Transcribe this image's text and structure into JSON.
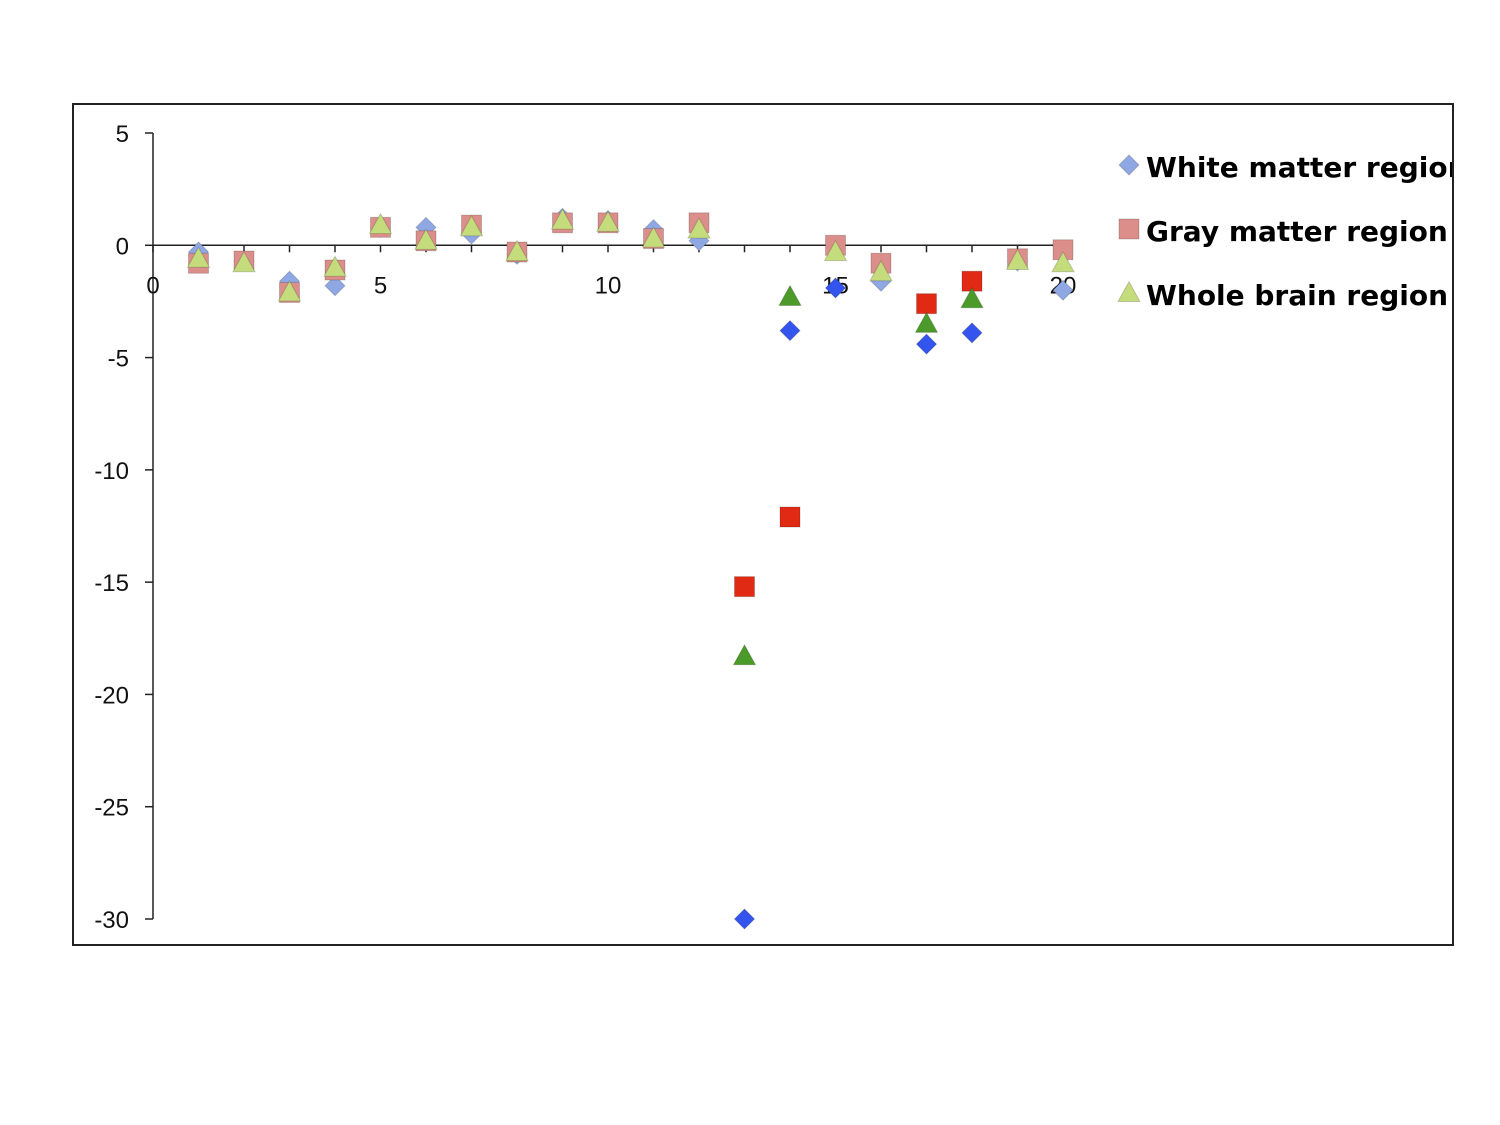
{
  "chart_data": {
    "type": "scatter",
    "title": "",
    "xlabel": "",
    "ylabel": "",
    "xlim": [
      0,
      20
    ],
    "ylim": [
      -30,
      5
    ],
    "x_ticks": [
      0,
      5,
      10,
      15,
      20
    ],
    "y_ticks": [
      5,
      0,
      -5,
      -10,
      -15,
      -20,
      -25,
      -30
    ],
    "grid": false,
    "legend_position": "top-right",
    "series": [
      {
        "name": "White matter region",
        "marker": "diamond",
        "color": "#3355ee",
        "faded_color": "#8fa8e4",
        "points": [
          [
            1,
            -0.3
          ],
          [
            2,
            -0.7
          ],
          [
            3,
            -1.6
          ],
          [
            4,
            -1.8
          ],
          [
            5,
            0.8
          ],
          [
            6,
            0.8
          ],
          [
            7,
            0.5
          ],
          [
            8,
            -0.4
          ],
          [
            9,
            1.2
          ],
          [
            10,
            1.1
          ],
          [
            11,
            0.7
          ],
          [
            12,
            0.2
          ],
          [
            13,
            -30
          ],
          [
            14,
            -3.8
          ],
          [
            15,
            -1.9
          ],
          [
            16,
            -1.6
          ],
          [
            17,
            -4.4
          ],
          [
            18,
            -3.9
          ],
          [
            19,
            -0.7
          ],
          [
            20,
            -2.0
          ]
        ]
      },
      {
        "name": "Gray matter region",
        "marker": "square",
        "color": "#e02a14",
        "faded_color": "#dc8f8a",
        "points": [
          [
            1,
            -0.8
          ],
          [
            2,
            -0.7
          ],
          [
            3,
            -2.1
          ],
          [
            4,
            -1.1
          ],
          [
            5,
            0.8
          ],
          [
            6,
            0.2
          ],
          [
            7,
            0.9
          ],
          [
            8,
            -0.3
          ],
          [
            9,
            1.0
          ],
          [
            10,
            1.0
          ],
          [
            11,
            0.3
          ],
          [
            12,
            1.0
          ],
          [
            13,
            -15.2
          ],
          [
            14,
            -12.1
          ],
          [
            15,
            0.0
          ],
          [
            16,
            -0.8
          ],
          [
            17,
            -2.6
          ],
          [
            18,
            -1.6
          ],
          [
            19,
            -0.6
          ],
          [
            20,
            -0.2
          ]
        ]
      },
      {
        "name": "Whole brain region",
        "marker": "triangle",
        "color": "#4c9a2a",
        "faded_color": "#c5dc7c",
        "points": [
          [
            1,
            -0.6
          ],
          [
            2,
            -0.8
          ],
          [
            3,
            -2.1
          ],
          [
            4,
            -1.0
          ],
          [
            5,
            0.9
          ],
          [
            6,
            0.2
          ],
          [
            7,
            0.8
          ],
          [
            8,
            -0.3
          ],
          [
            9,
            1.1
          ],
          [
            10,
            1.0
          ],
          [
            11,
            0.3
          ],
          [
            12,
            0.7
          ],
          [
            13,
            -18.3
          ],
          [
            14,
            -2.3
          ],
          [
            15,
            -0.3
          ],
          [
            16,
            -1.2
          ],
          [
            17,
            -3.5
          ],
          [
            18,
            -2.4
          ],
          [
            19,
            -0.7
          ],
          [
            20,
            -0.8
          ]
        ]
      }
    ],
    "highlighted_x": [
      13,
      14,
      17,
      18
    ],
    "extra_highlight": [
      {
        "series": 0,
        "x": 15
      }
    ]
  }
}
